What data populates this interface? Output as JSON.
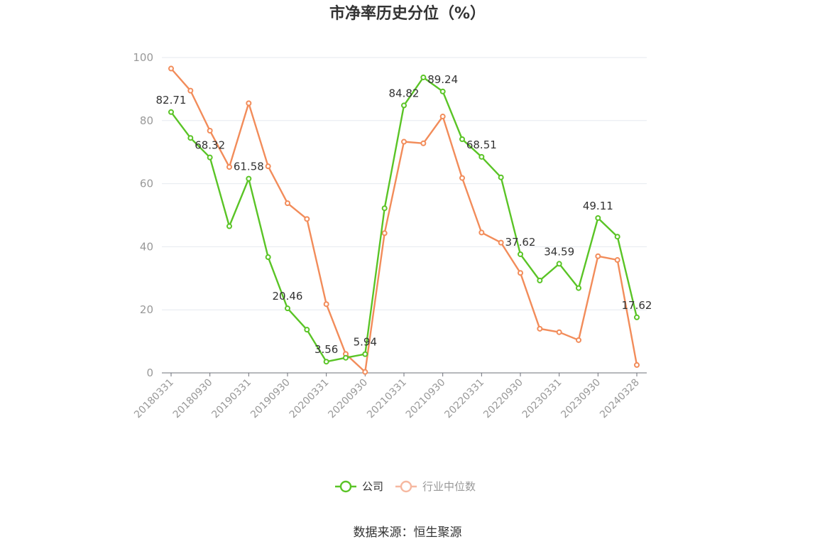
{
  "chart_data": {
    "type": "line",
    "title": "市净率历史分位（%）",
    "source": "数据来源：恒生聚源",
    "xlabel": "",
    "ylabel": "",
    "ylim": [
      0,
      100
    ],
    "yticks": [
      0,
      20,
      40,
      60,
      80,
      100
    ],
    "grid": true,
    "legend_position": "bottom-center",
    "x": [
      "20180331",
      "20180630",
      "20180930",
      "20181231",
      "20190331",
      "20190630",
      "20190930",
      "20191231",
      "20200331",
      "20200630",
      "20200930",
      "20201231",
      "20210331",
      "20210630",
      "20210930",
      "20211231",
      "20220331",
      "20220630",
      "20220930",
      "20221231",
      "20230331",
      "20230630",
      "20230930",
      "20231231",
      "20240328"
    ],
    "x_tick_labels": [
      "20180331",
      "20180930",
      "20190331",
      "20190930",
      "20200331",
      "20200930",
      "20210331",
      "20210930",
      "20220331",
      "20220930",
      "20230331",
      "20230930",
      "20240328"
    ],
    "series": [
      {
        "name": "公司",
        "color": "#5ac426",
        "values": [
          82.71,
          74.5,
          68.32,
          46.5,
          61.58,
          36.7,
          20.46,
          13.7,
          3.56,
          4.8,
          5.94,
          52.2,
          84.82,
          93.7,
          89.24,
          74.1,
          68.51,
          62.0,
          37.62,
          29.3,
          34.59,
          26.9,
          49.11,
          43.2,
          17.62
        ],
        "labels": [
          "82.71",
          "",
          "68.32",
          "",
          "61.58",
          "",
          "20.46",
          "",
          "3.56",
          "",
          "5.94",
          "",
          "84.82",
          "",
          "89.24",
          "",
          "68.51",
          "",
          "37.62",
          "",
          "34.59",
          "",
          "49.11",
          "",
          "17.62"
        ]
      },
      {
        "name": "行业中位数",
        "color": "#f28c5a",
        "values": [
          96.5,
          89.5,
          76.8,
          65.3,
          85.5,
          65.5,
          53.8,
          48.8,
          21.8,
          6.0,
          0.3,
          44.3,
          73.3,
          72.8,
          81.3,
          61.8,
          44.5,
          41.3,
          31.7,
          14.0,
          12.9,
          10.4,
          37.0,
          35.8,
          2.5
        ]
      }
    ]
  }
}
